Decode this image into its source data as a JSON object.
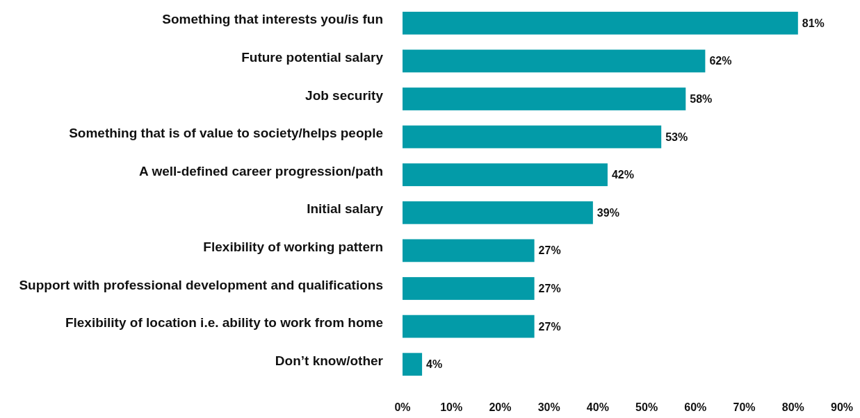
{
  "chart_data": {
    "type": "bar",
    "orientation": "horizontal",
    "categories": [
      "Something that interests you/is fun",
      "Future potential salary",
      "Job security",
      "Something that is of value to society/helps people",
      "A well-defined career progression/path",
      "Initial salary",
      "Flexibility of working pattern",
      "Support with professional development and qualifications",
      "Flexibility of location i.e. ability to work from home",
      "Don’t know/other"
    ],
    "values": [
      81,
      62,
      58,
      53,
      42,
      39,
      27,
      27,
      27,
      4
    ],
    "value_labels": [
      "81%",
      "62%",
      "58%",
      "53%",
      "42%",
      "39%",
      "27%",
      "27%",
      "27%",
      "4%"
    ],
    "color": "#039ba8",
    "xlim": [
      0,
      90
    ],
    "xticks": [
      {
        "value": 0,
        "label": "0%"
      },
      {
        "value": 10,
        "label": "10%"
      },
      {
        "value": 20,
        "label": "20%"
      },
      {
        "value": 30,
        "label": "30%"
      },
      {
        "value": 40,
        "label": "40%"
      },
      {
        "value": 50,
        "label": "50%"
      },
      {
        "value": 60,
        "label": "60%"
      },
      {
        "value": 70,
        "label": "70%"
      },
      {
        "value": 80,
        "label": "80%"
      },
      {
        "value": 90,
        "label": "90%"
      }
    ],
    "grid": false
  }
}
